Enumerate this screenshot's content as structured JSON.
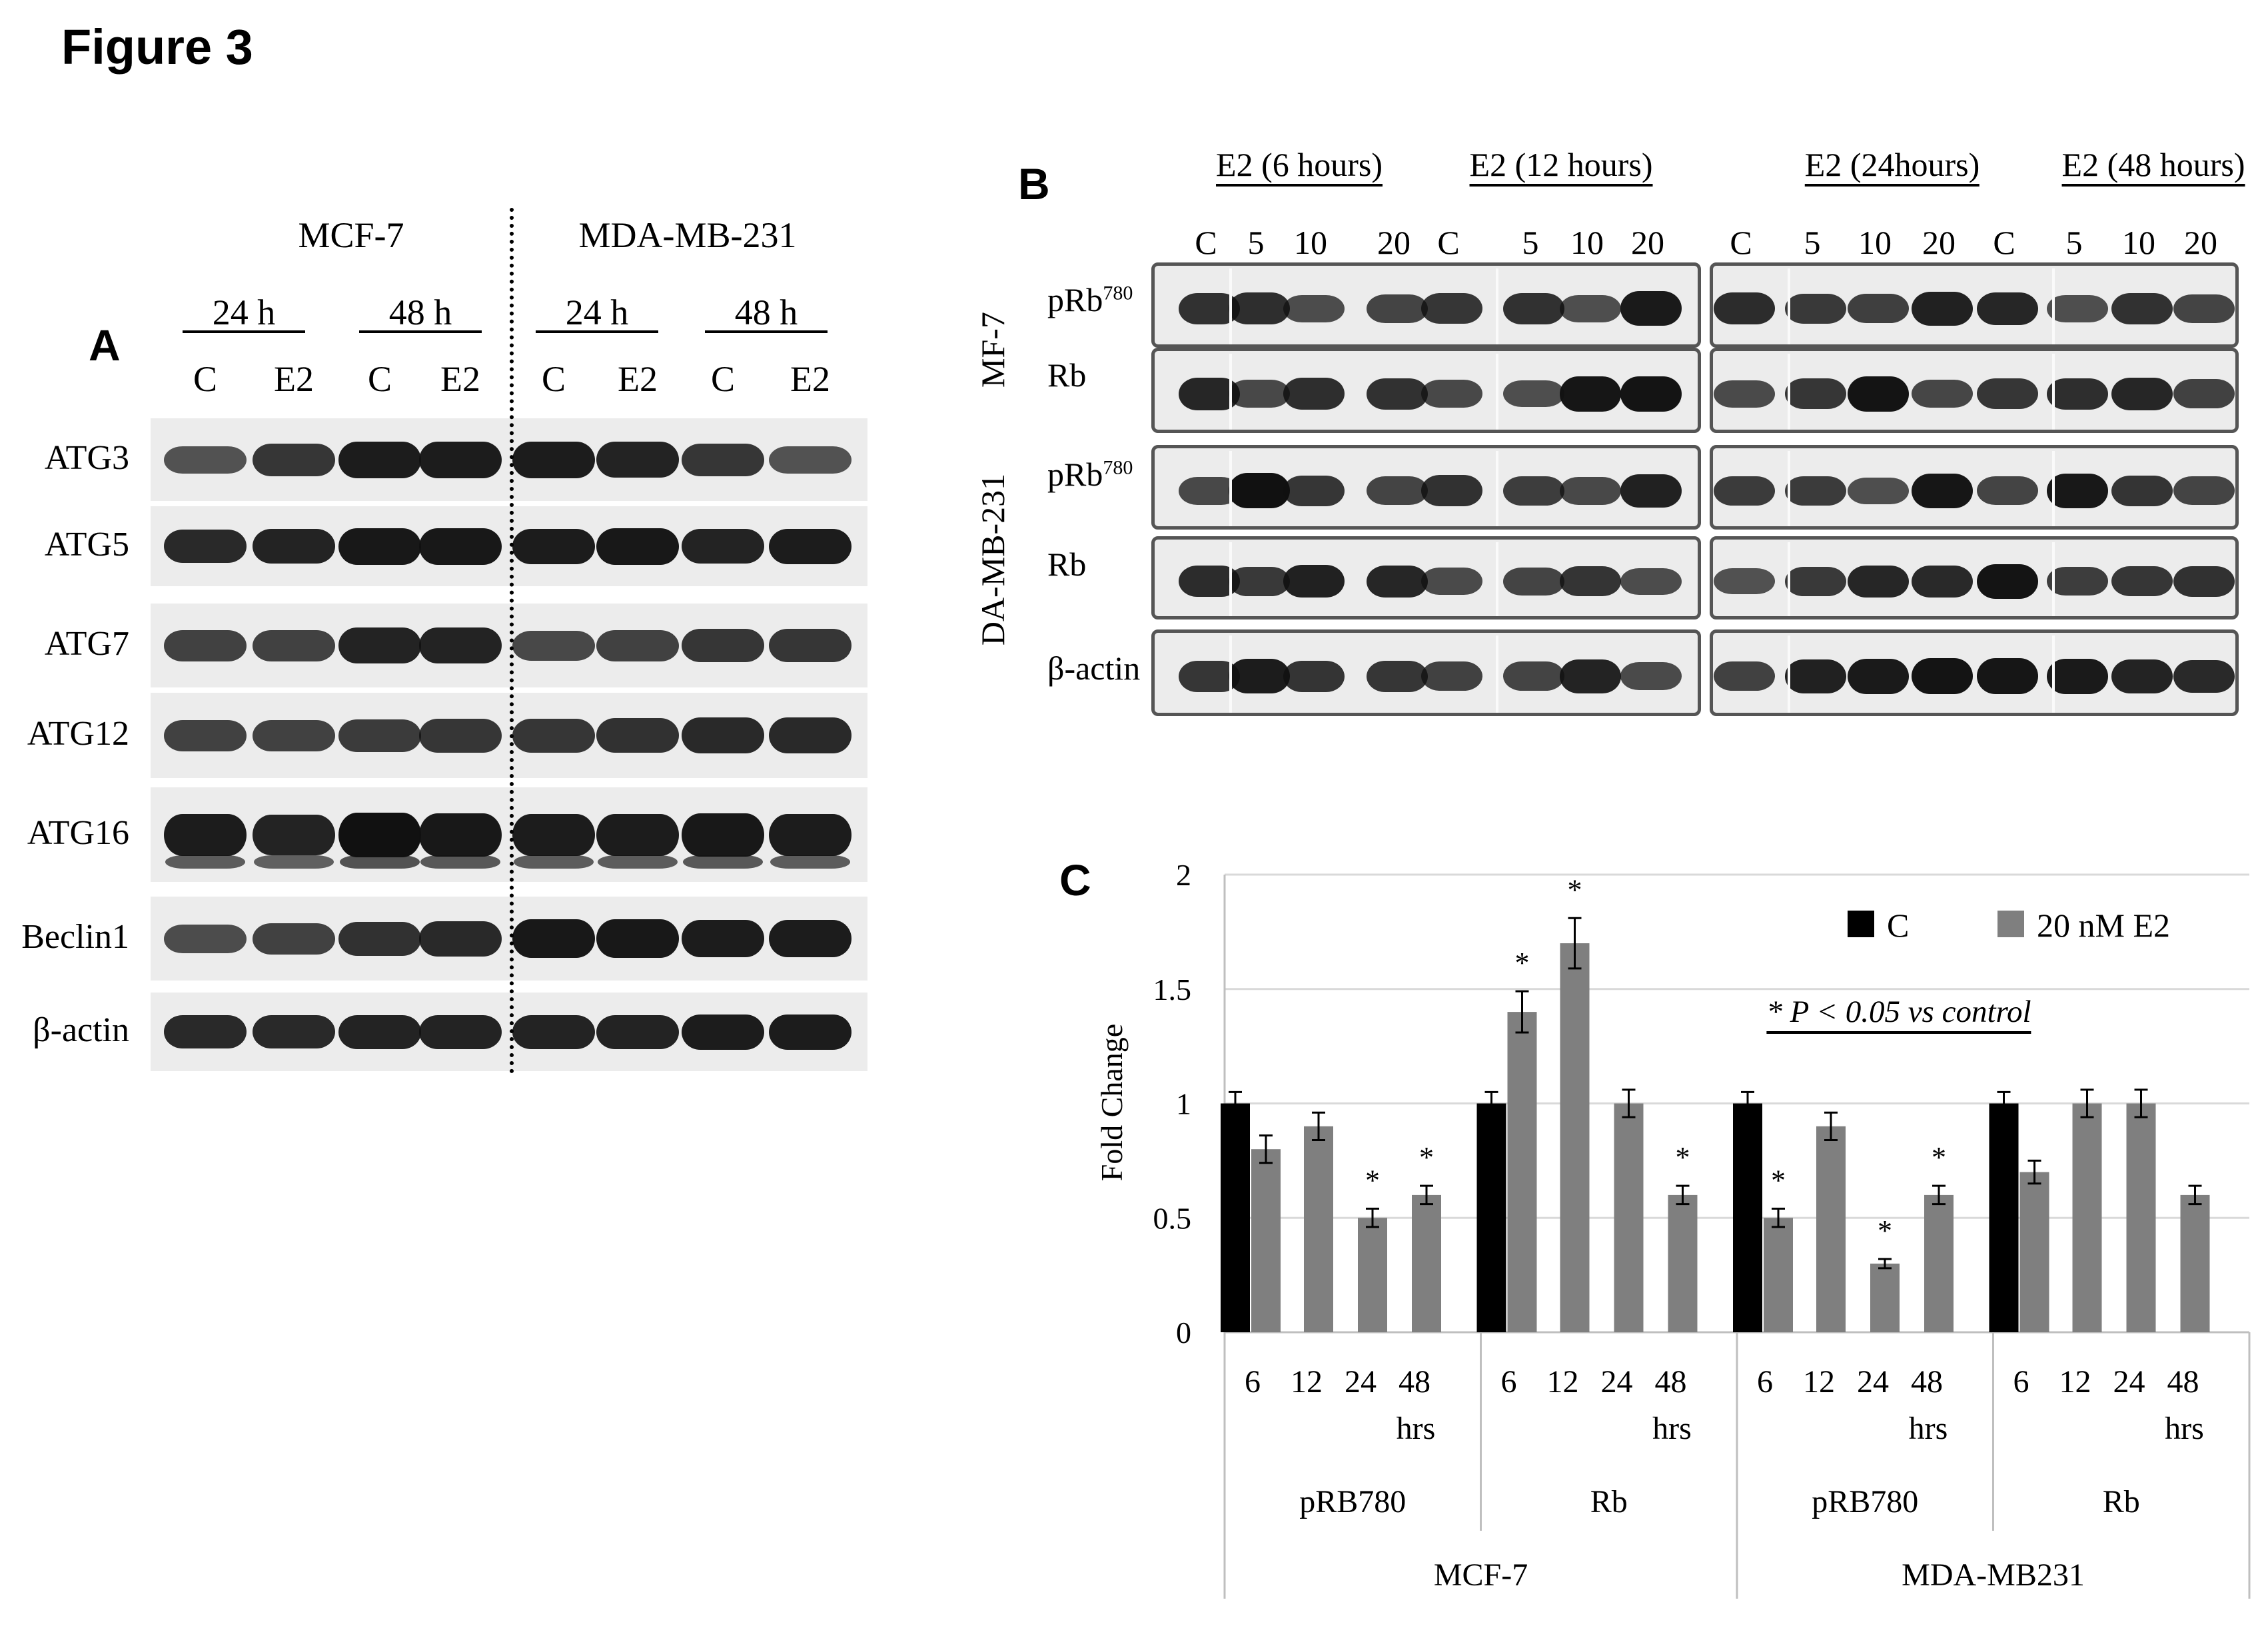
{
  "figure_title": "Figure 3",
  "panelA": {
    "letter": "A",
    "cell_lines": [
      "MCF-7",
      "MDA-MB-231"
    ],
    "timepoints": [
      "24 h",
      "48 h",
      "24 h",
      "48 h"
    ],
    "lanes": [
      "C",
      "E2",
      "C",
      "E2",
      "C",
      "E2",
      "C",
      "E2"
    ],
    "rows": [
      "ATG3",
      "ATG5",
      "ATG7",
      "ATG12",
      "ATG16",
      "Beclin1",
      "β-actin"
    ]
  },
  "panelB": {
    "letter": "B",
    "treatments": [
      "E2 (6 hours)",
      "E2 (12 hours)",
      "E2 (24hours)",
      "E2 (48 hours)"
    ],
    "lanes_left": [
      "C",
      "5",
      "10",
      "20",
      "C",
      "5",
      "10",
      "20"
    ],
    "lanes_right": [
      "C",
      "5",
      "10",
      "20",
      "C",
      "5",
      "10",
      "20"
    ],
    "cell_labels": [
      "MF-7",
      "DA-MB-231"
    ],
    "rows": [
      {
        "name": "pRb",
        "sup": "780"
      },
      {
        "name": "Rb",
        "sup": ""
      },
      {
        "name": "pRb",
        "sup": "780"
      },
      {
        "name": "Rb",
        "sup": ""
      },
      {
        "name": "β-actin",
        "sup": ""
      }
    ]
  },
  "panelC": {
    "letter": "C",
    "significance_note": "* P < 0.05 vs control",
    "hrs_label": "hrs"
  },
  "chart_data": {
    "type": "bar",
    "ylabel": "Fold Change",
    "ylim": [
      0,
      2
    ],
    "yticks": [
      "0",
      "0.5",
      "1",
      "1.5",
      "2"
    ],
    "legend": [
      "C",
      "20 nM E2"
    ],
    "legend_position": "top-right",
    "colors": {
      "C": "#000000",
      "20 nM E2": "#7f7f7f"
    },
    "outer_groups": [
      "MCF-7",
      "MDA-MB231"
    ],
    "groups": [
      "pRB780",
      "Rb",
      "pRB780",
      "Rb"
    ],
    "time_labels": [
      "6",
      "12",
      "24",
      "48"
    ],
    "control_values": [
      1,
      1,
      1,
      1
    ],
    "control_errors": [
      0.05,
      0.05,
      0.05,
      0.05
    ],
    "e2_values": [
      [
        0.8,
        0.9,
        0.5,
        0.6
      ],
      [
        1.4,
        1.7,
        1.0,
        0.6
      ],
      [
        0.5,
        0.9,
        0.3,
        0.6
      ],
      [
        0.7,
        1.0,
        1.0,
        0.6
      ]
    ],
    "e2_errors": [
      [
        0.06,
        0.06,
        0.04,
        0.04
      ],
      [
        0.09,
        0.11,
        0.06,
        0.04
      ],
      [
        0.04,
        0.06,
        0.02,
        0.04
      ],
      [
        0.05,
        0.06,
        0.06,
        0.04
      ]
    ],
    "significant": [
      [
        false,
        false,
        true,
        true
      ],
      [
        true,
        true,
        false,
        true
      ],
      [
        true,
        false,
        true,
        true
      ],
      [
        false,
        false,
        false,
        false
      ]
    ]
  }
}
